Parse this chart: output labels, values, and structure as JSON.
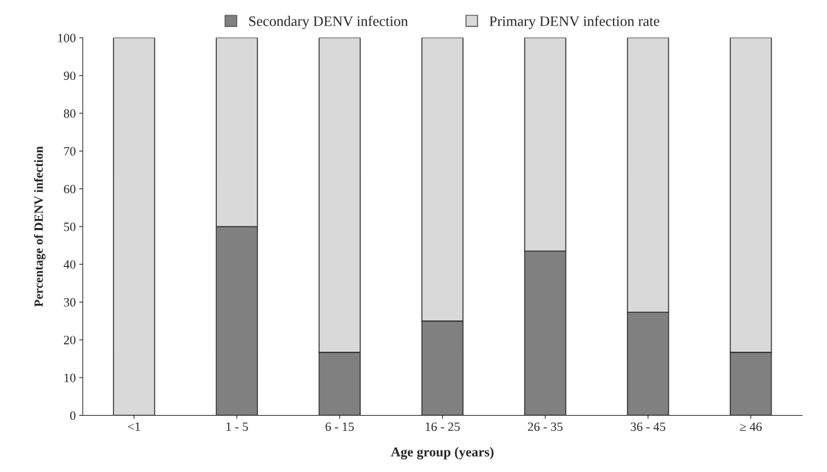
{
  "chart_data": {
    "type": "bar",
    "stacked": true,
    "xlabel": "Age group (years)",
    "ylabel": "Percentage of DENV infection",
    "categories": [
      "<1",
      "1 - 5",
      "6 - 15",
      "16 - 25",
      "26 - 35",
      "36 - 45",
      "≥ 46"
    ],
    "series": [
      {
        "name": "Secondary DENV infection",
        "color": "#808080",
        "values": [
          0,
          50,
          16.7,
          25,
          43.5,
          27.3,
          16.7
        ]
      },
      {
        "name": "Primary DENV infection rate",
        "color": "#d9d9d9",
        "values": [
          100,
          50,
          83.3,
          75,
          56.5,
          72.7,
          83.3
        ]
      }
    ],
    "ylim": [
      0,
      100
    ],
    "yticks": [
      0,
      10,
      20,
      30,
      40,
      50,
      60,
      70,
      80,
      90,
      100
    ],
    "grid": false,
    "legend": "top"
  }
}
